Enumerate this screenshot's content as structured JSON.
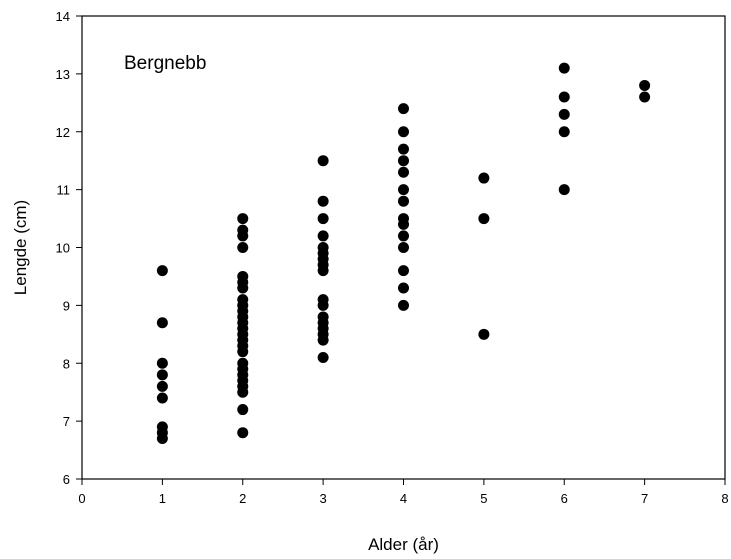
{
  "chart_data": {
    "type": "scatter",
    "title": "",
    "annotation": "Bergnebb",
    "xlabel": "Alder (år)",
    "ylabel": "Lengde (cm)",
    "xlim": [
      0,
      8
    ],
    "ylim": [
      6,
      14
    ],
    "xticks": [
      "0",
      "1",
      "2",
      "3",
      "4",
      "5",
      "6",
      "7",
      "8"
    ],
    "yticks": [
      "6",
      "7",
      "8",
      "9",
      "10",
      "11",
      "12",
      "13",
      "14"
    ],
    "grid": false,
    "marker_color": "#000000",
    "series": [
      {
        "points": [
          [
            1,
            9.6
          ],
          [
            1,
            8.7
          ],
          [
            1,
            8.0
          ],
          [
            1,
            7.8
          ],
          [
            1,
            7.6
          ],
          [
            1,
            7.4
          ],
          [
            1,
            6.9
          ],
          [
            1,
            6.8
          ],
          [
            1,
            6.7
          ],
          [
            2,
            10.5
          ],
          [
            2,
            10.3
          ],
          [
            2,
            10.2
          ],
          [
            2,
            10.0
          ],
          [
            2,
            9.5
          ],
          [
            2,
            9.4
          ],
          [
            2,
            9.3
          ],
          [
            2,
            9.1
          ],
          [
            2,
            9.0
          ],
          [
            2,
            8.9
          ],
          [
            2,
            8.8
          ],
          [
            2,
            8.7
          ],
          [
            2,
            8.6
          ],
          [
            2,
            8.5
          ],
          [
            2,
            8.4
          ],
          [
            2,
            8.3
          ],
          [
            2,
            8.2
          ],
          [
            2,
            8.0
          ],
          [
            2,
            7.9
          ],
          [
            2,
            7.8
          ],
          [
            2,
            7.7
          ],
          [
            2,
            7.6
          ],
          [
            2,
            7.5
          ],
          [
            2,
            7.2
          ],
          [
            2,
            6.8
          ],
          [
            3,
            11.5
          ],
          [
            3,
            10.8
          ],
          [
            3,
            10.5
          ],
          [
            3,
            10.2
          ],
          [
            3,
            10.0
          ],
          [
            3,
            9.9
          ],
          [
            3,
            9.8
          ],
          [
            3,
            9.7
          ],
          [
            3,
            9.6
          ],
          [
            3,
            9.1
          ],
          [
            3,
            9.0
          ],
          [
            3,
            8.8
          ],
          [
            3,
            8.7
          ],
          [
            3,
            8.6
          ],
          [
            3,
            8.5
          ],
          [
            3,
            8.4
          ],
          [
            3,
            8.1
          ],
          [
            4,
            12.4
          ],
          [
            4,
            12.0
          ],
          [
            4,
            11.7
          ],
          [
            4,
            11.5
          ],
          [
            4,
            11.3
          ],
          [
            4,
            11.0
          ],
          [
            4,
            10.8
          ],
          [
            4,
            10.5
          ],
          [
            4,
            10.4
          ],
          [
            4,
            10.2
          ],
          [
            4,
            10.0
          ],
          [
            4,
            9.6
          ],
          [
            4,
            9.3
          ],
          [
            4,
            9.0
          ],
          [
            5,
            11.2
          ],
          [
            5,
            10.5
          ],
          [
            5,
            8.5
          ],
          [
            6,
            13.1
          ],
          [
            6,
            12.6
          ],
          [
            6,
            12.3
          ],
          [
            6,
            12.0
          ],
          [
            6,
            11.0
          ],
          [
            7,
            12.8
          ],
          [
            7,
            12.6
          ]
        ]
      }
    ]
  }
}
